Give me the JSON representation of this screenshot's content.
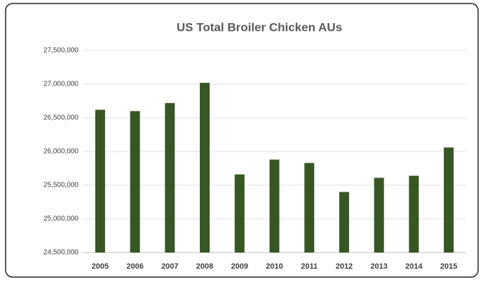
{
  "chart_data": {
    "type": "bar",
    "title": "US Total Broiler Chicken AUs",
    "categories": [
      "2005",
      "2006",
      "2007",
      "2008",
      "2009",
      "2010",
      "2011",
      "2012",
      "2013",
      "2014",
      "2015"
    ],
    "values": [
      26620000,
      26600000,
      26720000,
      27020000,
      25660000,
      25880000,
      25830000,
      25400000,
      25610000,
      25640000,
      26060000
    ],
    "color": "#375623",
    "ylim": [
      24500000,
      27500000
    ],
    "yticks": [
      {
        "value": 24500000,
        "label": "24,500,000"
      },
      {
        "value": 25000000,
        "label": "25,000,000"
      },
      {
        "value": 25500000,
        "label": "25,500,000"
      },
      {
        "value": 26000000,
        "label": "26,000,000"
      },
      {
        "value": 26500000,
        "label": "26,500,000"
      },
      {
        "value": 27000000,
        "label": "27,000,000"
      },
      {
        "value": 27500000,
        "label": "27,500,000"
      }
    ],
    "grid": true
  }
}
